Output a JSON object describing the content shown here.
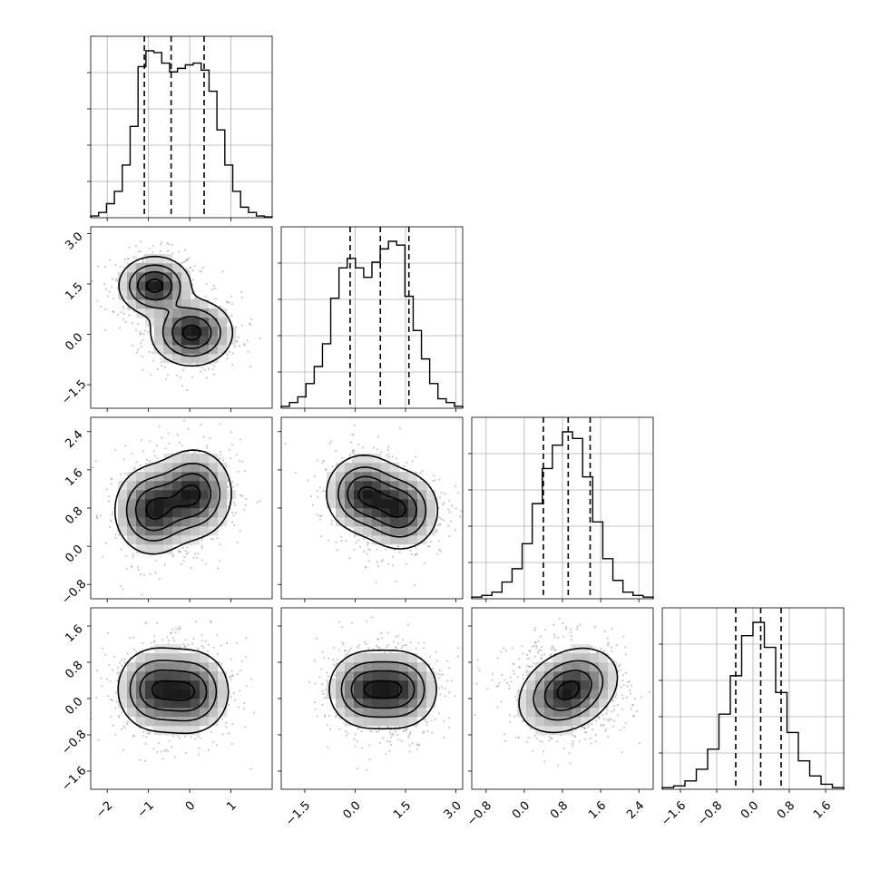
{
  "chart_data": {
    "type": "corner",
    "n_params": 4,
    "grid": true,
    "axes": [
      {
        "range": [
          -2.4,
          2.0
        ],
        "ticks": [
          -2,
          -1,
          0,
          1
        ],
        "tick_labels": [
          "−2",
          "−1",
          "0",
          "1"
        ]
      },
      {
        "range": [
          -2.2,
          3.2
        ],
        "ticks": [
          -1.5,
          0.0,
          1.5,
          3.0
        ],
        "tick_labels": [
          "−1.5",
          "0.0",
          "1.5",
          "3.0"
        ]
      },
      {
        "range": [
          -1.1,
          2.7
        ],
        "ticks": [
          -0.8,
          0.0,
          0.8,
          1.6,
          2.4
        ],
        "tick_labels": [
          "−0.8",
          "0.0",
          "0.8",
          "1.6",
          "2.4"
        ]
      },
      {
        "range": [
          -2.0,
          2.0
        ],
        "ticks": [
          -1.6,
          -0.8,
          0.0,
          0.8,
          1.6
        ],
        "tick_labels": [
          "−1.6",
          "−0.8",
          "0.0",
          "0.8",
          "1.6"
        ]
      }
    ],
    "histograms": [
      {
        "quantiles": [
          -1.1,
          -0.45,
          0.35
        ],
        "bins": [
          -2.4,
          2.0
        ],
        "counts": [
          0.01,
          0.03,
          0.08,
          0.15,
          0.3,
          0.52,
          0.86,
          0.95,
          0.94,
          0.88,
          0.83,
          0.85,
          0.87,
          0.88,
          0.84,
          0.72,
          0.5,
          0.3,
          0.15,
          0.06,
          0.03,
          0.01,
          0.005
        ]
      },
      {
        "quantiles": [
          -0.15,
          0.75,
          1.6
        ],
        "bins": [
          -2.2,
          3.2
        ],
        "counts": [
          0.01,
          0.03,
          0.06,
          0.13,
          0.22,
          0.34,
          0.58,
          0.74,
          0.79,
          0.74,
          0.69,
          0.77,
          0.84,
          0.88,
          0.86,
          0.59,
          0.41,
          0.26,
          0.13,
          0.05,
          0.03,
          0.01
        ]
      },
      {
        "quantiles": [
          0.4,
          0.92,
          1.38
        ],
        "bins": [
          -1.1,
          2.7
        ],
        "counts": [
          0.01,
          0.02,
          0.04,
          0.1,
          0.18,
          0.33,
          0.57,
          0.78,
          0.92,
          1.0,
          0.96,
          0.73,
          0.46,
          0.24,
          0.11,
          0.04,
          0.02,
          0.01
        ]
      },
      {
        "quantiles": [
          -0.38,
          0.17,
          0.62
        ],
        "bins": [
          -2.0,
          2.0
        ],
        "counts": [
          0.01,
          0.02,
          0.05,
          0.12,
          0.24,
          0.45,
          0.68,
          0.92,
          1.0,
          0.85,
          0.58,
          0.34,
          0.17,
          0.08,
          0.03,
          0.01
        ]
      }
    ],
    "scatter_2d": [
      {
        "x_param": 0,
        "y_param": 1,
        "peaks": [
          {
            "x": -0.85,
            "y": 1.45,
            "sx": 0.42,
            "sy": 0.42,
            "rho": 0.0
          },
          {
            "x": 0.05,
            "y": 0.05,
            "sx": 0.48,
            "sy": 0.48,
            "rho": 0.0
          }
        ]
      },
      {
        "x_param": 0,
        "y_param": 2,
        "peaks": [
          {
            "x": -0.9,
            "y": 0.75,
            "sx": 0.45,
            "sy": 0.45,
            "rho": 0.0
          },
          {
            "x": 0.1,
            "y": 1.1,
            "sx": 0.45,
            "sy": 0.45,
            "rho": 0.0
          }
        ]
      },
      {
        "x_param": 1,
        "y_param": 2,
        "peaks": [
          {
            "x": 0.25,
            "y": 1.1,
            "sx": 0.55,
            "sy": 0.4,
            "rho": 0.0
          },
          {
            "x": 1.35,
            "y": 0.75,
            "sx": 0.55,
            "sy": 0.4,
            "rho": 0.0
          }
        ]
      },
      {
        "x_param": 0,
        "y_param": 3,
        "peaks": [
          {
            "x": -0.85,
            "y": 0.2,
            "sx": 0.45,
            "sy": 0.45,
            "rho": 0.0
          },
          {
            "x": 0.05,
            "y": 0.15,
            "sx": 0.45,
            "sy": 0.45,
            "rho": 0.0
          }
        ]
      },
      {
        "x_param": 1,
        "y_param": 3,
        "peaks": [
          {
            "x": 0.3,
            "y": 0.2,
            "sx": 0.55,
            "sy": 0.42,
            "rho": 0.0
          },
          {
            "x": 1.35,
            "y": 0.2,
            "sx": 0.55,
            "sy": 0.42,
            "rho": 0.0
          }
        ]
      },
      {
        "x_param": 2,
        "y_param": 3,
        "peaks": [
          {
            "x": 0.92,
            "y": 0.18,
            "sx": 0.5,
            "sy": 0.45,
            "rho": 0.3
          }
        ]
      }
    ]
  }
}
